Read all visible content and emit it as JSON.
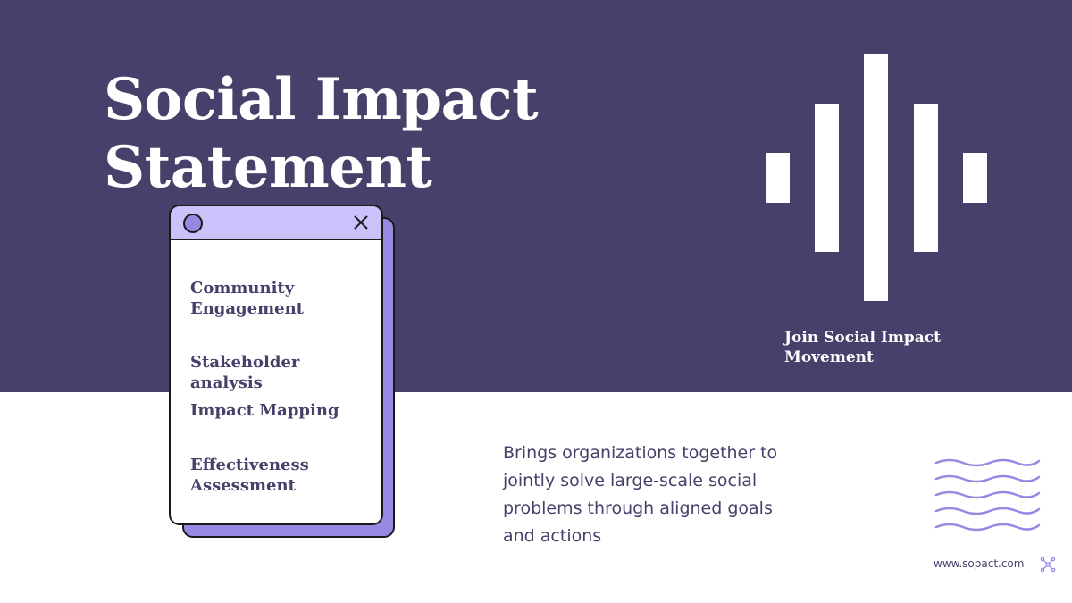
{
  "slide": {
    "title_lines": [
      "Social Impact",
      "Statement"
    ],
    "card": {
      "items": [
        [
          "Community",
          "Engagement"
        ],
        [
          "Stakeholder",
          "analysis"
        ],
        [
          "Impact Mapping"
        ],
        [
          "Effectiveness",
          "Assessment"
        ]
      ]
    },
    "join_lines": [
      "Join Social Impact",
      "Movement"
    ],
    "description_lines": [
      "Brings organizations together to",
      "jointly solve large-scale social",
      "problems through aligned goals",
      "and actions"
    ],
    "footer_url": "www.sopact.com"
  },
  "icons": {
    "window_circle": "circle-icon",
    "window_close": "close-icon",
    "waves": "wavy-lines-icon",
    "logo": "sopact-logo-icon",
    "bars": "sound-bars-icon"
  },
  "colors": {
    "primary": "#48406a",
    "accent": "#9789e2",
    "accent_light": "#c9c2fb",
    "white": "#ffffff"
  }
}
